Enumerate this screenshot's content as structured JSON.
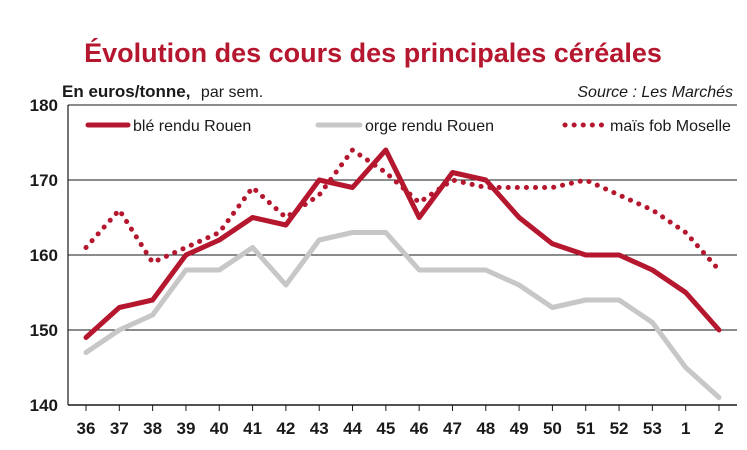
{
  "header": {
    "title": "Évolution des cours des principales céréales",
    "unit_bold": "En euros/tonne,",
    "unit_rest": "par sem.",
    "source": "Source : Les Marchés"
  },
  "colors": {
    "title": "#b5172f",
    "ble": "#b5172f",
    "orge": "#c7c7c7",
    "mais": "#b5172f",
    "gridline": "#1a1a1a"
  },
  "chart_data": {
    "type": "line",
    "title": "Évolution des cours des principales céréales",
    "ylabel": "En euros/tonne, par sem.",
    "xlabel": "",
    "ylim": [
      140,
      180
    ],
    "yticks": [
      "140",
      "150",
      "160",
      "170",
      "180"
    ],
    "grid": "horizontal",
    "legend_position": "top",
    "categories": [
      "36",
      "37",
      "38",
      "39",
      "40",
      "41",
      "42",
      "43",
      "44",
      "45",
      "46",
      "47",
      "48",
      "49",
      "50",
      "51",
      "52",
      "53",
      "1",
      "2"
    ],
    "series": [
      {
        "name": "blé rendu Rouen",
        "style": "solid",
        "values": [
          149,
          153,
          154,
          160,
          162,
          165,
          164,
          170,
          169,
          174,
          165,
          171,
          170,
          165,
          161.5,
          160,
          160,
          158,
          155,
          150
        ]
      },
      {
        "name": "orge rendu Rouen",
        "style": "solid",
        "values": [
          147,
          150,
          152,
          158,
          158,
          161,
          156,
          162,
          163,
          163,
          158,
          158,
          158,
          156,
          153,
          154,
          154,
          151,
          145,
          141
        ]
      },
      {
        "name": "maïs fob Moselle",
        "style": "dotted",
        "values": [
          161,
          166,
          159,
          161,
          163,
          169,
          165,
          168,
          174,
          171,
          167,
          170,
          169,
          169,
          169,
          170,
          168,
          166,
          163,
          158
        ]
      }
    ]
  }
}
